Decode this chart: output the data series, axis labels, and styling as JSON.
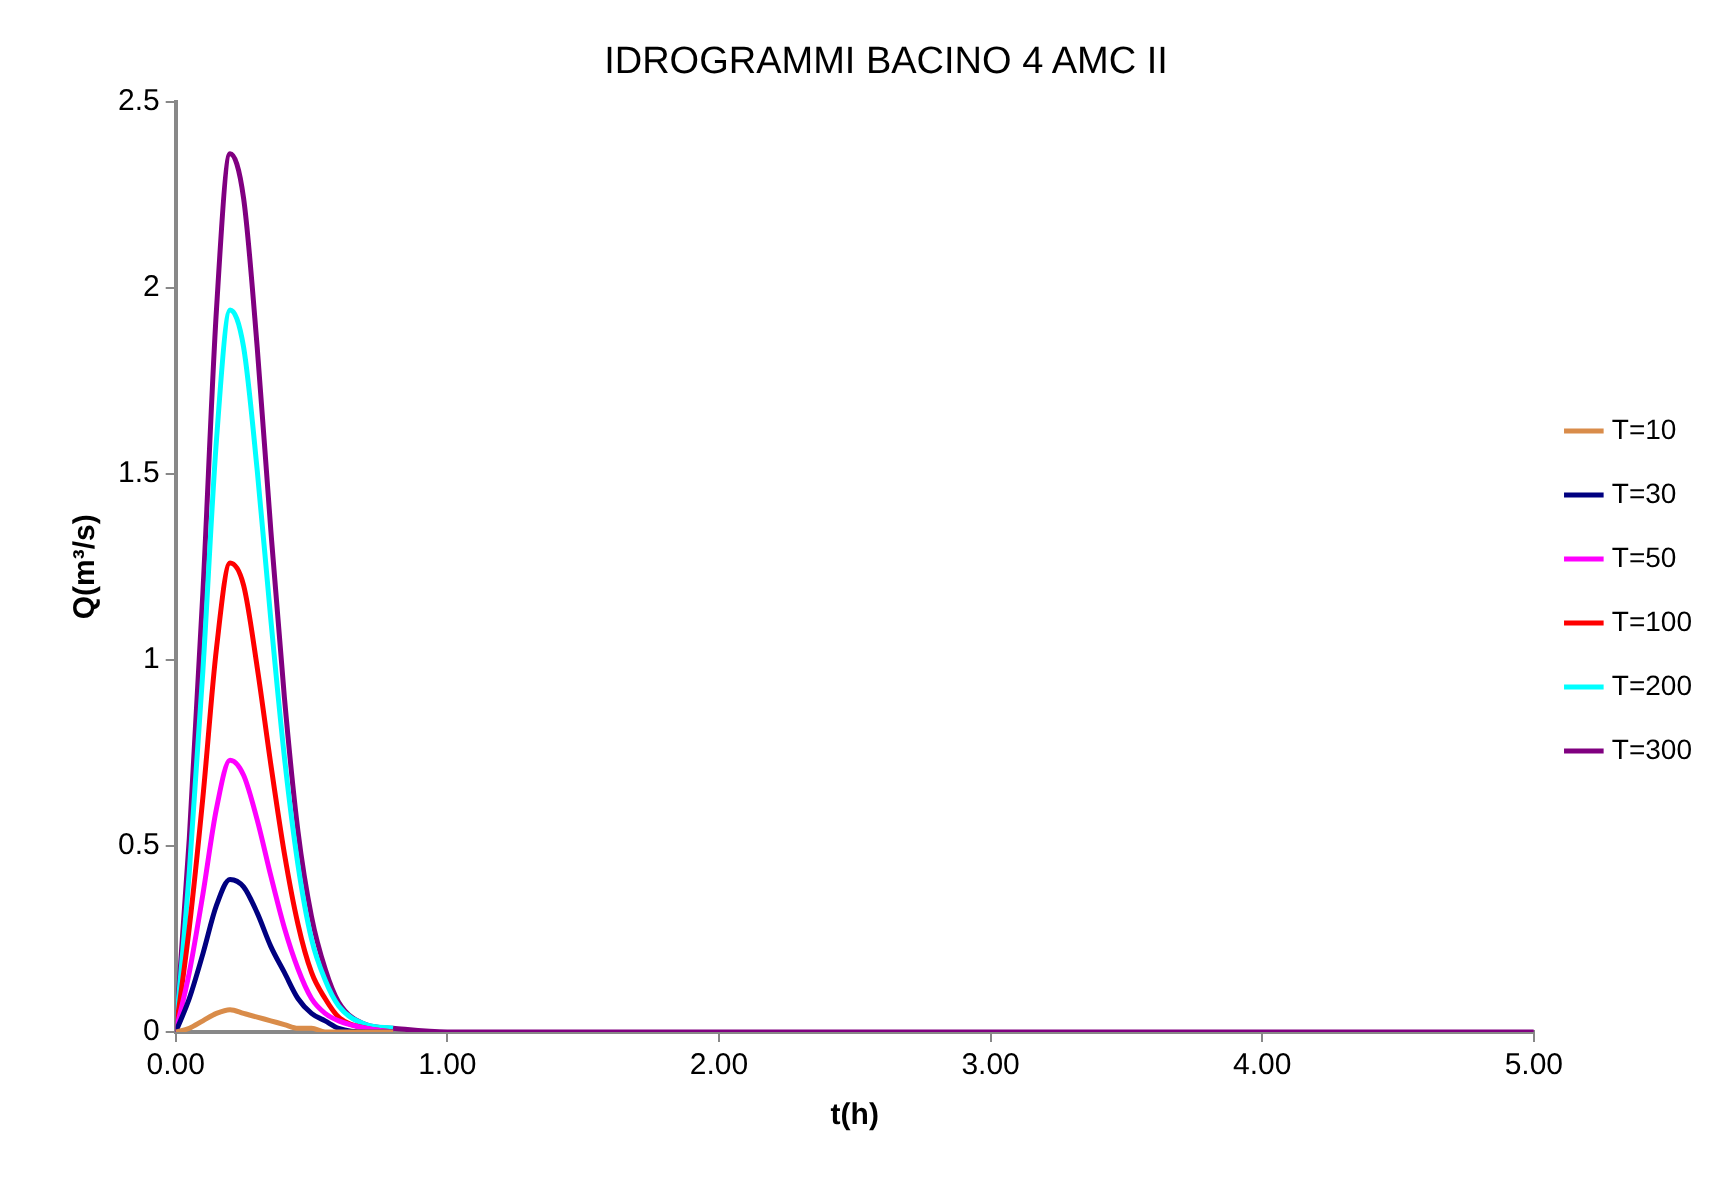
{
  "chart_data": {
    "type": "line",
    "title": "IDROGRAMMI BACINO 4 AMC II",
    "xlabel": "t(h)",
    "ylabel": "Q(m³/s)",
    "x": [
      0,
      0.05,
      0.1,
      0.15,
      0.2,
      0.25,
      0.3,
      0.35,
      0.4,
      0.45,
      0.5,
      0.55,
      0.6,
      0.7,
      0.8,
      1,
      5
    ],
    "series": [
      {
        "name": "T=10",
        "color": "#d98c4a",
        "values": [
          0,
          0.01,
          0.03,
          0.05,
          0.06,
          0.05,
          0.04,
          0.03,
          0.02,
          0.01,
          0.01,
          0,
          0,
          0,
          0,
          null,
          null
        ]
      },
      {
        "name": "T=30",
        "color": "#000080",
        "values": [
          0,
          0.09,
          0.21,
          0.34,
          0.41,
          0.39,
          0.32,
          0.23,
          0.16,
          0.09,
          0.05,
          0.03,
          0.01,
          0,
          0,
          null,
          null
        ]
      },
      {
        "name": "T=50",
        "color": "#ff00ff",
        "values": [
          0,
          0.16,
          0.37,
          0.6,
          0.73,
          0.69,
          0.57,
          0.42,
          0.28,
          0.17,
          0.09,
          0.05,
          0.03,
          0.01,
          0,
          null,
          null
        ]
      },
      {
        "name": "T=100",
        "color": "#ff0000",
        "values": [
          0,
          0.28,
          0.63,
          1.03,
          1.26,
          1.2,
          0.98,
          0.72,
          0.48,
          0.29,
          0.16,
          0.09,
          0.04,
          0.01,
          0,
          null,
          null
        ]
      },
      {
        "name": "T=200",
        "color": "#00ffff",
        "values": [
          0,
          0.43,
          0.97,
          1.59,
          1.94,
          1.84,
          1.51,
          1.11,
          0.74,
          0.45,
          0.25,
          0.14,
          0.07,
          0.02,
          0.01,
          null,
          null
        ]
      },
      {
        "name": "T=300",
        "color": "#800080",
        "values": [
          0,
          0.52,
          1.18,
          1.94,
          2.36,
          2.24,
          1.84,
          1.35,
          0.9,
          0.54,
          0.31,
          0.17,
          0.08,
          0.02,
          0.01,
          0,
          0
        ]
      }
    ],
    "xlim": [
      0,
      5
    ],
    "xticks": [
      {
        "value": 0,
        "label": "0.00"
      },
      {
        "value": 1,
        "label": "1.00"
      },
      {
        "value": 2,
        "label": "2.00"
      },
      {
        "value": 3,
        "label": "3.00"
      },
      {
        "value": 4,
        "label": "4.00"
      },
      {
        "value": 5,
        "label": "5.00"
      }
    ],
    "ylim": [
      0,
      2.5
    ],
    "yticks": [
      0,
      0.5,
      1,
      1.5,
      2,
      2.5
    ],
    "grid": false,
    "legend": "right",
    "marker": "none",
    "line_style": "solid"
  }
}
